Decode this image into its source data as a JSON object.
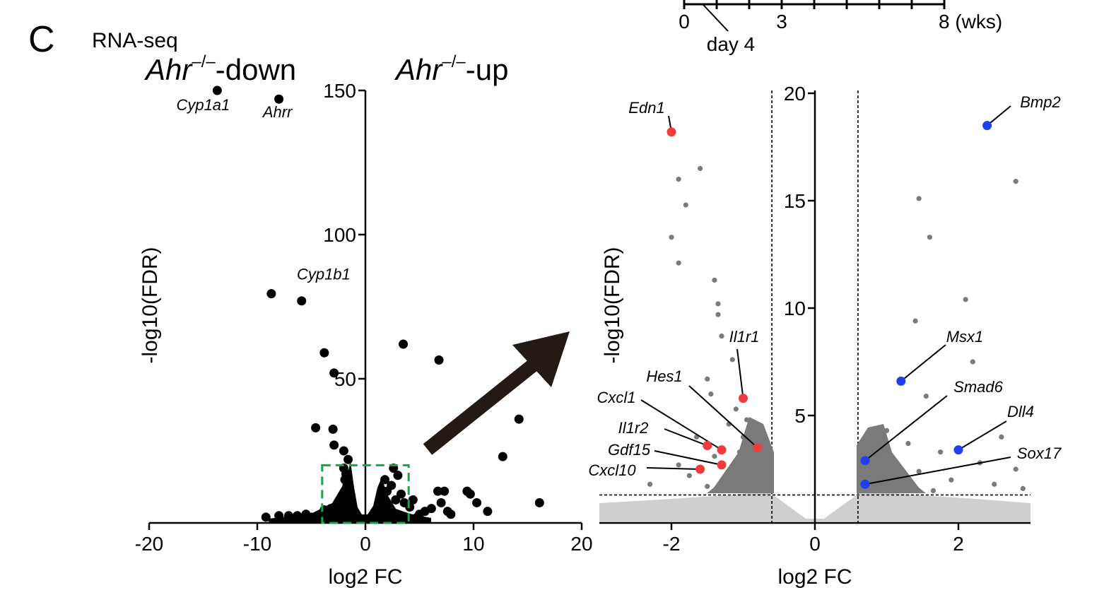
{
  "panel_letter": "C",
  "assay_label": "RNA-seq",
  "timeline": {
    "ticks": [
      {
        "label": "0",
        "at": 0
      },
      {
        "label": "3",
        "at": 3
      },
      {
        "label": "8 (wks)",
        "at": 8
      }
    ],
    "marker_label": "day 4",
    "marker_at": 0.571
  },
  "group_labels": {
    "down_gene": "Ahr",
    "down_sup": "–/–",
    "down_suffix": "-down",
    "up_gene": "Ahr",
    "up_sup": "–/–",
    "up_suffix": "-up"
  },
  "colors": {
    "black_points": "#000000",
    "grey_points": "#7a7a7a",
    "light_points": "#cfcfcf",
    "down_highlight": "#f23c3c",
    "up_highlight": "#1f3ff0",
    "zoom_box": "#1aa34a",
    "arrow": "#231a15"
  },
  "chart_data": [
    {
      "type": "scatter",
      "panel": "overview",
      "xlabel": "log2 FC",
      "ylabel": "-log10(FDR)",
      "xlim": [
        -20,
        20
      ],
      "ylim": [
        0,
        150
      ],
      "x_ticks": [
        -20,
        -10,
        0,
        10,
        20
      ],
      "y_ticks": [
        50,
        100,
        150
      ],
      "zoom_box": {
        "x": [
          -4,
          4
        ],
        "y": [
          0,
          20
        ]
      },
      "points": [
        {
          "x": -13.7,
          "y": 150,
          "label": "Cyp1a1"
        },
        {
          "x": -8.0,
          "y": 147,
          "label": "Ahrr"
        },
        {
          "x": -8.7,
          "y": 79.5,
          "label": "Cyp1b1"
        },
        {
          "x": -5.9,
          "y": 77
        },
        {
          "x": -3.8,
          "y": 59
        },
        {
          "x": -2.9,
          "y": 52
        },
        {
          "x": 3.5,
          "y": 62
        },
        {
          "x": 6.8,
          "y": 56.5
        },
        {
          "x": 14.2,
          "y": 36
        },
        {
          "x": 12.7,
          "y": 23
        },
        {
          "x": 16.1,
          "y": 7
        },
        {
          "x": -4.6,
          "y": 33
        },
        {
          "x": -3.0,
          "y": 32.5
        },
        {
          "x": -2.9,
          "y": 27
        },
        {
          "x": -2.0,
          "y": 25
        },
        {
          "x": -1.6,
          "y": 22
        },
        {
          "x": -2.0,
          "y": 19
        },
        {
          "x": -1.8,
          "y": 17
        },
        {
          "x": -1.9,
          "y": 15
        },
        {
          "x": -1.7,
          "y": 13
        },
        {
          "x": -1.8,
          "y": 11
        },
        {
          "x": -1.6,
          "y": 9.5
        },
        {
          "x": -1.5,
          "y": 7.5
        },
        {
          "x": -2.5,
          "y": 6
        },
        {
          "x": -3.2,
          "y": 5
        },
        {
          "x": -3.8,
          "y": 4.5
        },
        {
          "x": 2.6,
          "y": 19
        },
        {
          "x": 3.0,
          "y": 16.5
        },
        {
          "x": 1.8,
          "y": 15
        },
        {
          "x": 2.4,
          "y": 13
        },
        {
          "x": 2.0,
          "y": 11
        },
        {
          "x": 3.3,
          "y": 10
        },
        {
          "x": 2.8,
          "y": 8
        },
        {
          "x": 3.6,
          "y": 7
        },
        {
          "x": 4.1,
          "y": 5.5
        },
        {
          "x": 4.4,
          "y": 8
        },
        {
          "x": 6.7,
          "y": 11
        },
        {
          "x": 7.3,
          "y": 11
        },
        {
          "x": 9.4,
          "y": 11
        },
        {
          "x": 9.7,
          "y": 10
        },
        {
          "x": 10.3,
          "y": 7
        },
        {
          "x": 11.3,
          "y": 4
        },
        {
          "x": 7.0,
          "y": 7
        },
        {
          "x": 7.6,
          "y": 4
        },
        {
          "x": 5.5,
          "y": 4
        },
        {
          "x": 5.0,
          "y": 3
        },
        {
          "x": 6.1,
          "y": 5
        },
        {
          "x": 7.9,
          "y": 3
        },
        {
          "x": -5.5,
          "y": 3
        },
        {
          "x": -6.3,
          "y": 2.5
        },
        {
          "x": -7.1,
          "y": 2.5
        },
        {
          "x": -8.0,
          "y": 2.5
        },
        {
          "x": -9.2,
          "y": 2
        },
        {
          "x": -5.0,
          "y": 2
        },
        {
          "x": -6.8,
          "y": 1.5
        },
        {
          "x": -4.5,
          "y": 1.5
        },
        {
          "x": -3.5,
          "y": 2.5
        },
        {
          "x": 4.8,
          "y": 2
        }
      ]
    },
    {
      "type": "scatter",
      "panel": "zoom",
      "xlabel": "log2 FC",
      "ylabel": "-log10(FDR)",
      "xlim": [
        -3,
        3
      ],
      "ylim": [
        0,
        20
      ],
      "x_ticks": [
        -2,
        0,
        2
      ],
      "y_ticks": [
        5,
        10,
        15,
        20
      ],
      "fc_thresholds": [
        -0.6,
        0.6
      ],
      "fdr_threshold": 1.3,
      "labeled_points": [
        {
          "label": "Edn1",
          "x": -2.0,
          "y": 18.2,
          "group": "down"
        },
        {
          "label": "Il1r1",
          "x": -1.0,
          "y": 5.8,
          "group": "down"
        },
        {
          "label": "Hes1",
          "x": -0.8,
          "y": 3.5,
          "group": "down"
        },
        {
          "label": "Cxcl1",
          "x": -1.3,
          "y": 3.4,
          "group": "down"
        },
        {
          "label": "Il1r2",
          "x": -1.5,
          "y": 3.6,
          "group": "down"
        },
        {
          "label": "Gdf15",
          "x": -1.3,
          "y": 2.7,
          "group": "down"
        },
        {
          "label": "Cxcl10",
          "x": -1.6,
          "y": 2.5,
          "group": "down"
        },
        {
          "label": "Bmp2",
          "x": 2.4,
          "y": 18.5,
          "group": "up"
        },
        {
          "label": "Msx1",
          "x": 1.2,
          "y": 6.6,
          "group": "up"
        },
        {
          "label": "Smad6",
          "x": 0.7,
          "y": 2.9,
          "group": "up"
        },
        {
          "label": "Dll4",
          "x": 2.0,
          "y": 3.4,
          "group": "up"
        },
        {
          "label": "Sox17",
          "x": 0.7,
          "y": 1.8,
          "group": "up"
        }
      ],
      "significant_points": [
        [
          -1.6,
          16.5
        ],
        [
          -1.9,
          16.0
        ],
        [
          -1.8,
          14.8
        ],
        [
          -2.0,
          13.3
        ],
        [
          -1.9,
          12.1
        ],
        [
          -1.4,
          11.3
        ],
        [
          -1.35,
          10.2
        ],
        [
          -1.35,
          9.7
        ],
        [
          -1.3,
          8.7
        ],
        [
          -1.15,
          7.6
        ],
        [
          -1.5,
          6.7
        ],
        [
          -1.45,
          6.0
        ],
        [
          -1.1,
          5.3
        ],
        [
          -0.95,
          4.8
        ],
        [
          -1.2,
          4.6
        ],
        [
          -0.85,
          4.3
        ],
        [
          -1.65,
          4.0
        ],
        [
          -1.0,
          4.0
        ],
        [
          -0.75,
          3.9
        ],
        [
          -1.4,
          3.1
        ],
        [
          -1.05,
          3.3
        ],
        [
          -0.7,
          3.0
        ],
        [
          -1.9,
          2.7
        ],
        [
          -0.9,
          2.6
        ],
        [
          -1.75,
          2.2
        ],
        [
          -1.15,
          2.2
        ],
        [
          -0.8,
          2.4
        ],
        [
          -0.65,
          1.9
        ],
        [
          -2.3,
          1.8
        ],
        [
          -1.5,
          1.7
        ],
        [
          -1.0,
          1.6
        ],
        [
          -0.7,
          1.5
        ],
        [
          1.45,
          15.1
        ],
        [
          2.8,
          15.9
        ],
        [
          1.6,
          13.3
        ],
        [
          2.1,
          10.4
        ],
        [
          1.4,
          9.4
        ],
        [
          2.2,
          7.5
        ],
        [
          1.55,
          5.9
        ],
        [
          1.0,
          4.3
        ],
        [
          0.85,
          3.8
        ],
        [
          1.3,
          3.7
        ],
        [
          2.6,
          4.0
        ],
        [
          0.75,
          3.4
        ],
        [
          1.75,
          3.3
        ],
        [
          2.3,
          2.8
        ],
        [
          1.1,
          2.6
        ],
        [
          0.8,
          2.3
        ],
        [
          1.45,
          2.4
        ],
        [
          2.8,
          2.5
        ],
        [
          0.9,
          1.9
        ],
        [
          1.9,
          2.0
        ],
        [
          1.2,
          1.7
        ],
        [
          2.5,
          1.8
        ],
        [
          0.7,
          1.5
        ],
        [
          1.65,
          1.5
        ],
        [
          2.9,
          1.6
        ]
      ]
    }
  ]
}
